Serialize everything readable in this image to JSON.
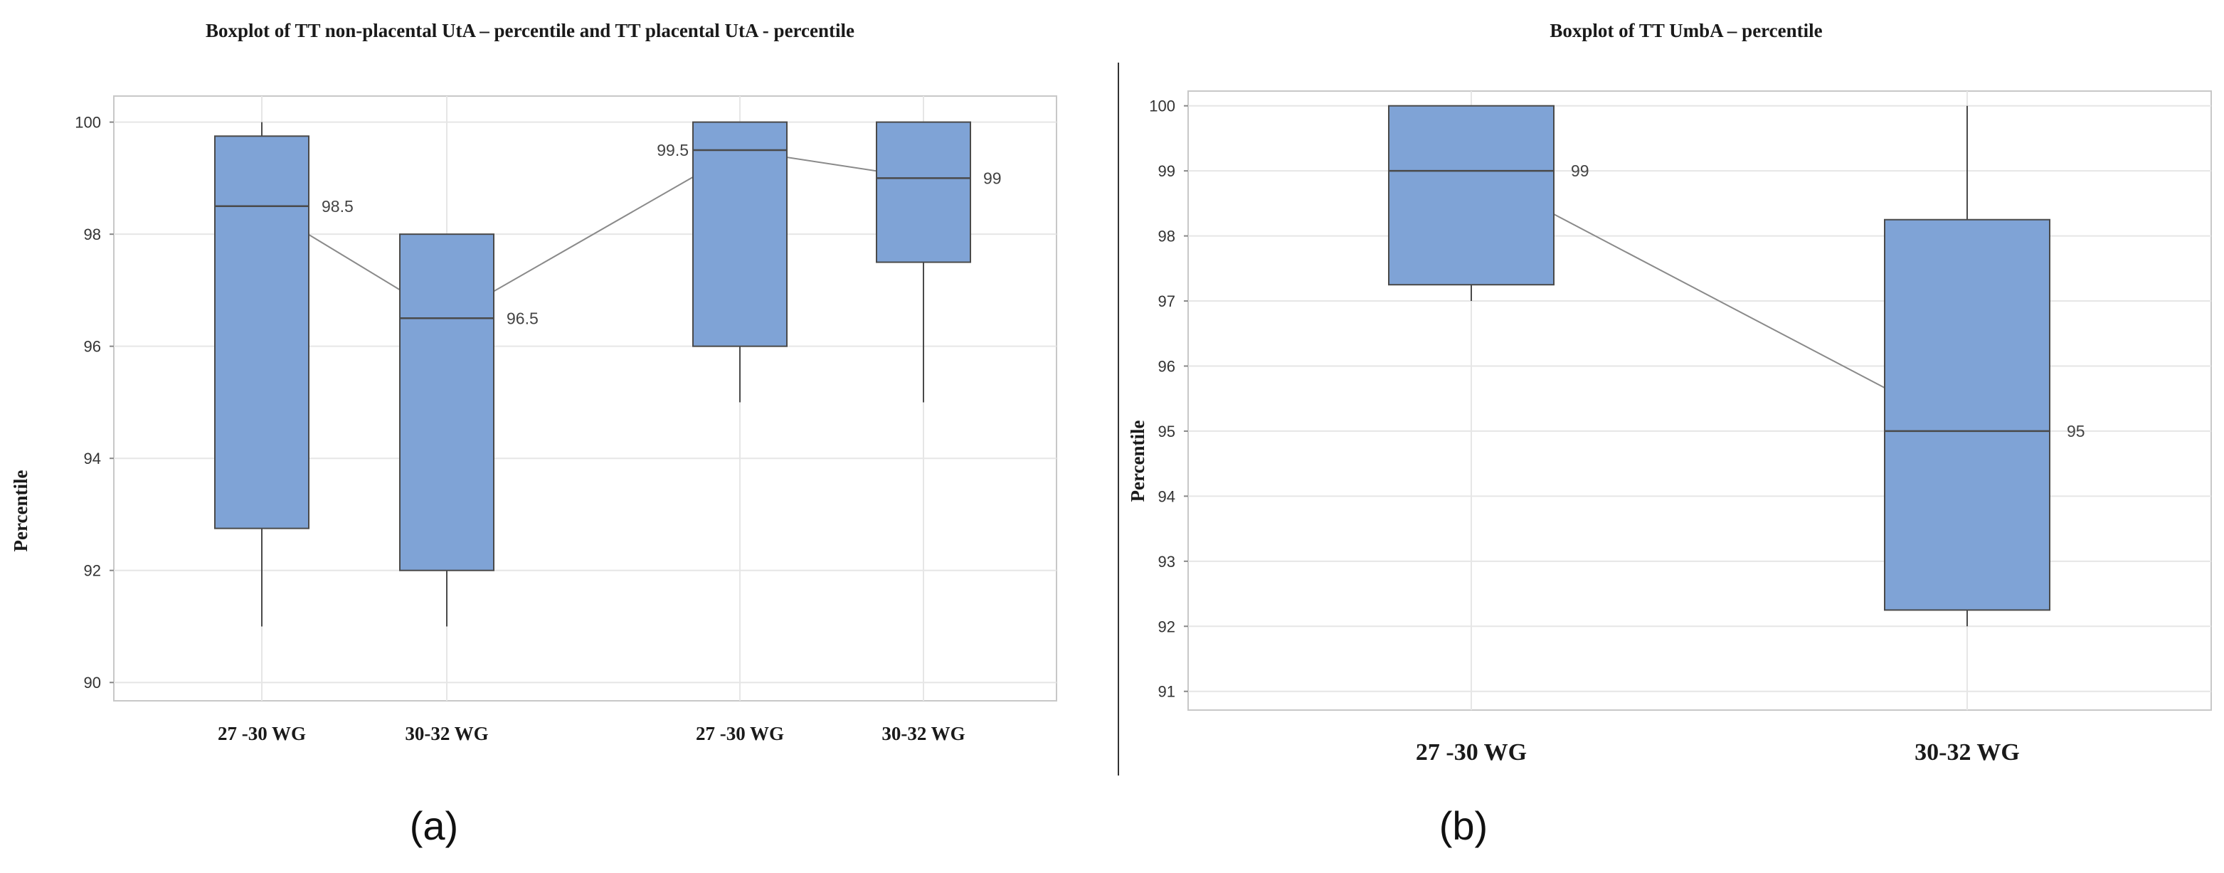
{
  "chart_data": [
    {
      "id": "a",
      "type": "boxplot",
      "title": "Boxplot  of TT non-placental UtA – percentile and TT placental UtA - percentile",
      "ylabel": "Percentile",
      "xlabel": "",
      "ylim": [
        89.8,
        100.3
      ],
      "yticks": [
        90,
        92,
        94,
        96,
        98,
        100
      ],
      "grid": true,
      "caption": "(a)",
      "groups": [
        {
          "label": "27 -30 WG",
          "q1": 92.75,
          "median": 98.5,
          "q3": 99.75,
          "whisker_low": 91,
          "whisker_high": 100,
          "median_label": "98.5"
        },
        {
          "label": "30-32 WG",
          "q1": 92,
          "median": 96.5,
          "q3": 98,
          "whisker_low": 91,
          "whisker_high": 98,
          "median_label": "96.5"
        },
        {
          "label": "27 -30 WG",
          "q1": 96,
          "median": 99.5,
          "q3": 100,
          "whisker_low": 95,
          "whisker_high": 100,
          "median_label": "99.5"
        },
        {
          "label": "30-32 WG",
          "q1": 97.5,
          "median": 99,
          "q3": 100,
          "whisker_low": 95,
          "whisker_high": 100,
          "median_label": "99"
        }
      ]
    },
    {
      "id": "b",
      "type": "boxplot",
      "title": "Boxplot  of TT  UmbA – percentile",
      "ylabel": "Percentile",
      "xlabel": "",
      "ylim": [
        90.8,
        100.15
      ],
      "yticks": [
        91,
        92,
        93,
        94,
        95,
        96,
        97,
        98,
        99,
        100
      ],
      "grid": true,
      "caption": "(b)",
      "groups": [
        {
          "label": "27 -30 WG",
          "q1": 97.25,
          "median": 99,
          "q3": 100,
          "whisker_low": 97,
          "whisker_high": 100,
          "median_label": "99"
        },
        {
          "label": "30-32 WG",
          "q1": 92.25,
          "median": 95,
          "q3": 98.25,
          "whisker_low": 92,
          "whisker_high": 100,
          "median_label": "95"
        }
      ]
    }
  ],
  "colors": {
    "box_fill": "#7fa3d6",
    "box_stroke": "#4a4a4a",
    "grid": "#e6e6e6",
    "frame": "#c8c8c8",
    "connector": "#8a8a8a"
  }
}
